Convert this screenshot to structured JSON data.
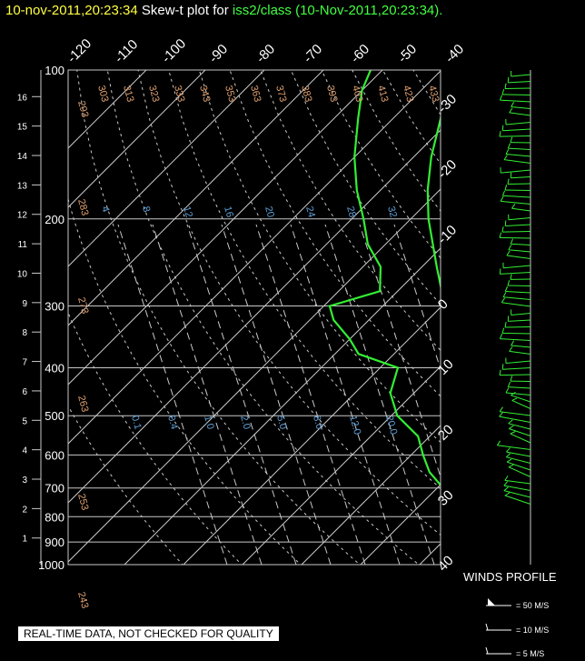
{
  "title": {
    "timestamp": "10-nov-2011,20:23:34",
    "prefix": "Skew-t plot for",
    "station": "iss2/class",
    "suffix": "(10-Nov-2011,20:23:34)."
  },
  "axes": {
    "pressure_labels": [
      "100",
      "200",
      "300",
      "400",
      "500",
      "600",
      "700",
      "800",
      "900",
      "1000"
    ],
    "km_labels": [
      "16",
      "15",
      "14",
      "13",
      "12",
      "11",
      "10",
      "9",
      "8",
      "7",
      "6",
      "5",
      "4",
      "3",
      "2",
      "1"
    ],
    "top_temp_labels": [
      "-120",
      "-110",
      "-100",
      "-90",
      "-80",
      "-70",
      "-60",
      "-50",
      "-40"
    ],
    "right_temp_labels": [
      "-30",
      "-20",
      "-10",
      "0",
      "10",
      "20",
      "30",
      "40"
    ],
    "theta_labels_top": [
      "303",
      "313",
      "323",
      "333",
      "343",
      "353",
      "363",
      "373",
      "383",
      "393",
      "403",
      "413",
      "423",
      "433"
    ],
    "theta_labels_left": [
      "293",
      "283",
      "273",
      "263",
      "253",
      "243"
    ],
    "mixing_ratio_labels_upper": [
      "4",
      "8",
      "12",
      "16",
      "20",
      "24",
      "28",
      "32"
    ],
    "mixing_ratio_labels_lower": [
      "0.1",
      "0.4",
      "1.0",
      "2.0",
      "5.0",
      "8.0",
      "12.0",
      "20.0"
    ]
  },
  "winds": {
    "label": "WINDS PROFILE",
    "legend": [
      "= 50 M/S",
      "= 10 M/S",
      "= 5 M/S"
    ]
  },
  "disclaimer": "REAL-TIME DATA, NOT CHECKED FOR QUALITY",
  "colors": {
    "sounding": "#33ee33",
    "grid": "#c8c8c8",
    "theta_label": "#e0a070",
    "mixing_label": "#5fa0d8",
    "title_time": "#ffff40",
    "title_station": "#40ff40"
  },
  "chart_data": {
    "type": "line",
    "chart_kind": "skew-t log-p",
    "y_axis": "pressure (hPa), log scale",
    "ylim": [
      1000,
      100
    ],
    "temperature_range": [
      -40,
      40
    ],
    "series": [
      {
        "name": "temperature",
        "points": [
          [
            1000,
            22.5
          ],
          [
            950,
            20
          ],
          [
            900,
            17.5
          ],
          [
            850,
            14.5
          ],
          [
            800,
            12
          ],
          [
            750,
            9
          ],
          [
            700,
            6
          ],
          [
            650,
            3
          ],
          [
            600,
            0
          ],
          [
            550,
            -3.5
          ],
          [
            500,
            -7
          ],
          [
            450,
            -11
          ],
          [
            400,
            -16.5
          ],
          [
            350,
            -22.5
          ],
          [
            300,
            -29.5
          ],
          [
            250,
            -37.5
          ],
          [
            200,
            -47
          ],
          [
            175,
            -52
          ],
          [
            150,
            -57
          ],
          [
            125,
            -62
          ],
          [
            110,
            -66
          ],
          [
            100,
            -68
          ]
        ]
      },
      {
        "name": "dewpoint",
        "points": [
          [
            1000,
            20
          ],
          [
            950,
            17.5
          ],
          [
            900,
            14.5
          ],
          [
            850,
            11.5
          ],
          [
            800,
            8.5
          ],
          [
            750,
            5
          ],
          [
            700,
            1
          ],
          [
            650,
            -4
          ],
          [
            600,
            -8
          ],
          [
            550,
            -12
          ],
          [
            500,
            -19
          ],
          [
            450,
            -24
          ],
          [
            400,
            -27
          ],
          [
            375,
            -36
          ],
          [
            350,
            -40
          ],
          [
            320,
            -46
          ],
          [
            300,
            -49
          ],
          [
            280,
            -43
          ],
          [
            250,
            -47
          ],
          [
            225,
            -53
          ],
          [
            200,
            -58
          ],
          [
            175,
            -64
          ],
          [
            150,
            -70
          ],
          [
            125,
            -76
          ],
          [
            110,
            -80
          ],
          [
            100,
            -82
          ]
        ]
      }
    ]
  }
}
